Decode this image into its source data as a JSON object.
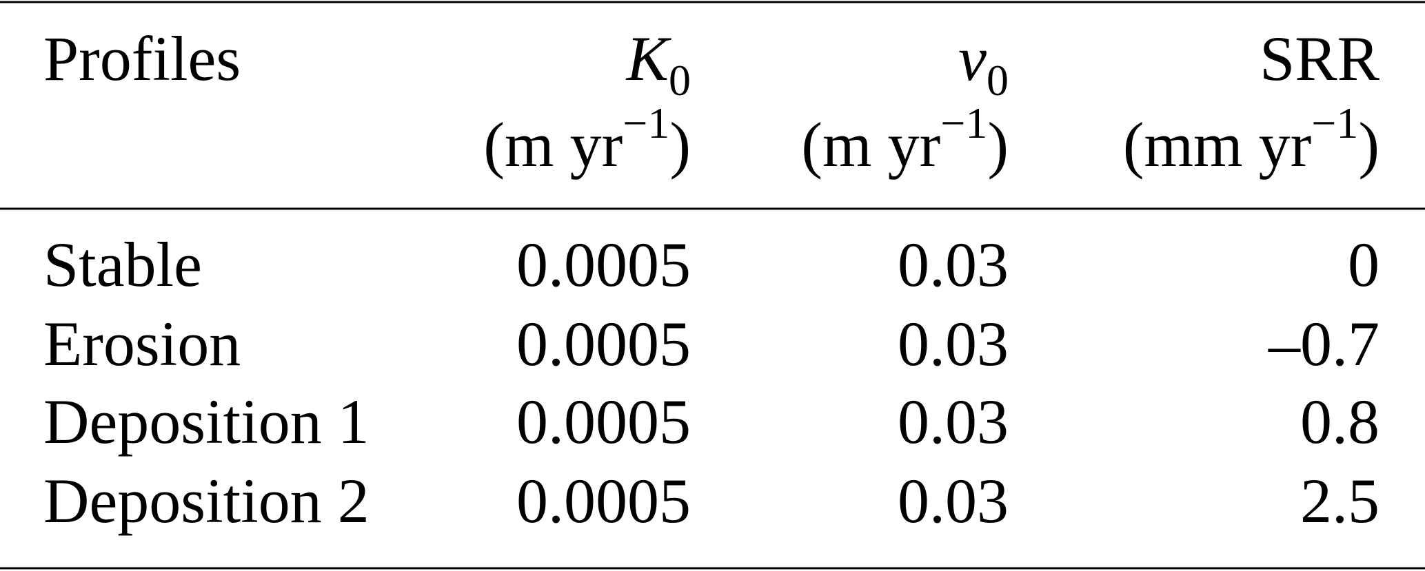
{
  "table": {
    "header": [
      {
        "label": "Profiles"
      },
      {
        "symbol": "K",
        "subscript": "0",
        "unit_open": "(m yr",
        "unit_exponent": "−1",
        "unit_close": ")"
      },
      {
        "symbol": "v",
        "subscript": "0",
        "unit_open": "(m yr",
        "unit_exponent": "−1",
        "unit_close": ")"
      },
      {
        "label": "SRR",
        "unit_open": "(mm yr",
        "unit_exponent": "−1",
        "unit_close": ")"
      }
    ],
    "rows": [
      [
        "Stable",
        "0.0005",
        "0.03",
        "0"
      ],
      [
        "Erosion",
        "0.0005",
        "0.03",
        "–0.7"
      ],
      [
        "Deposition 1",
        "0.0005",
        "0.03",
        "0.8"
      ],
      [
        "Deposition 2",
        "0.0005",
        "0.03",
        "2.5"
      ]
    ]
  }
}
